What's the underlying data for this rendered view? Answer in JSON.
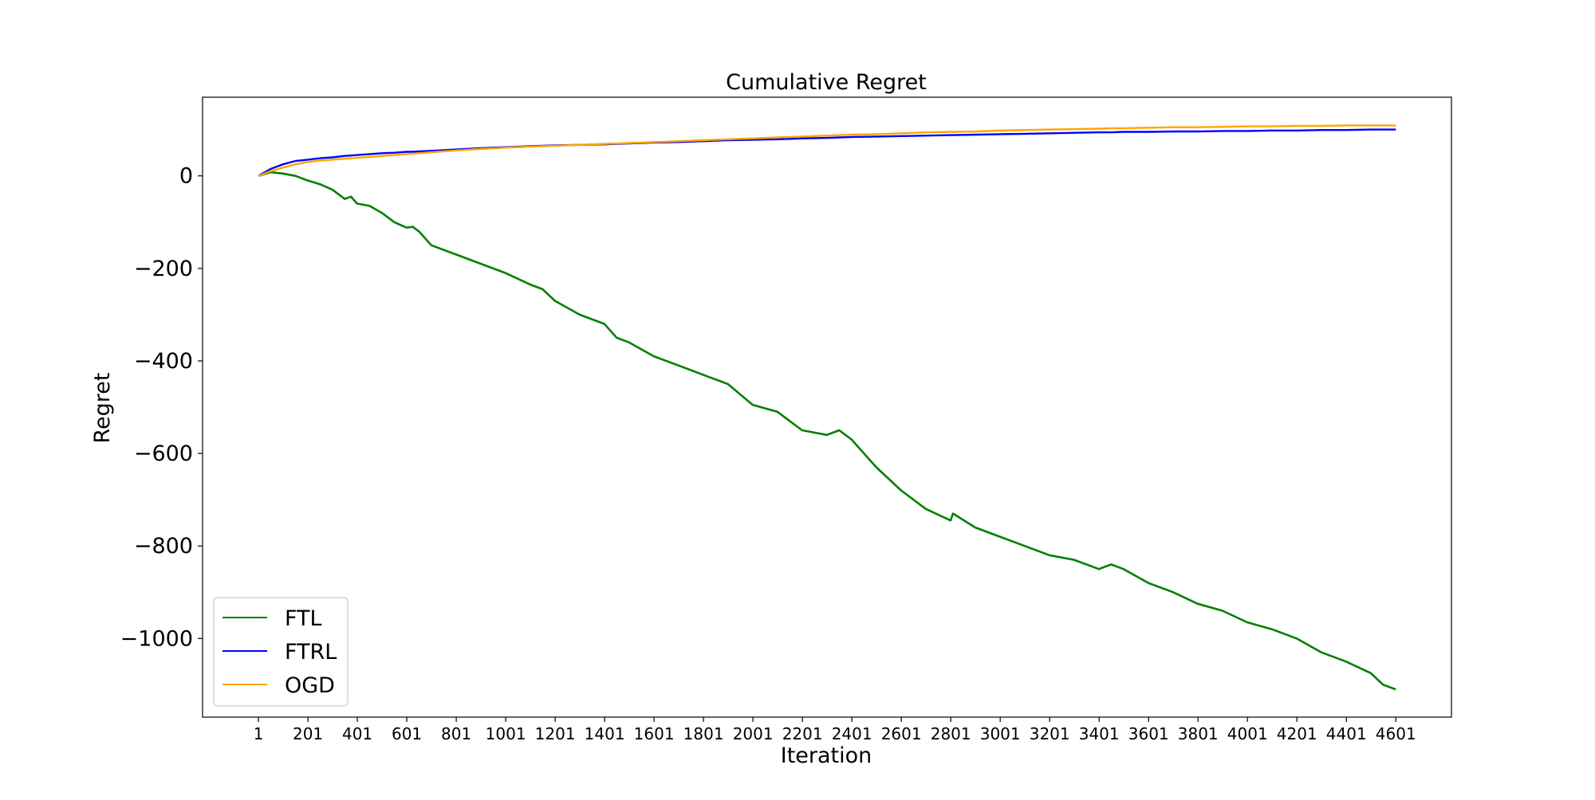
{
  "chart_data": {
    "type": "line",
    "title": "Cumulative Regret",
    "xlabel": "Iteration",
    "ylabel": "Regret",
    "xlim": [
      -225,
      4826
    ],
    "ylim": [
      -1170,
      170
    ],
    "x_ticks": [
      1,
      201,
      401,
      601,
      801,
      1001,
      1201,
      1401,
      1601,
      1801,
      2001,
      2201,
      2401,
      2601,
      2801,
      3001,
      3201,
      3401,
      3601,
      3801,
      4001,
      4201,
      4401,
      4601
    ],
    "y_ticks": [
      0,
      -200,
      -400,
      -600,
      -800,
      -1000
    ],
    "grid": false,
    "legend_position": "lower-left",
    "x": [
      1,
      50,
      100,
      150,
      200,
      250,
      300,
      350,
      375,
      400,
      450,
      500,
      550,
      600,
      625,
      650,
      700,
      800,
      900,
      1000,
      1100,
      1150,
      1200,
      1300,
      1400,
      1450,
      1500,
      1600,
      1700,
      1800,
      1850,
      1900,
      2000,
      2100,
      2150,
      2200,
      2300,
      2350,
      2400,
      2500,
      2600,
      2700,
      2800,
      2810,
      2900,
      3000,
      3100,
      3200,
      3300,
      3400,
      3450,
      3500,
      3600,
      3700,
      3800,
      3900,
      4000,
      4100,
      4200,
      4300,
      4400,
      4500,
      4550,
      4601
    ],
    "series": [
      {
        "name": "FTL",
        "color": "#008000",
        "values": [
          0,
          8,
          5,
          0,
          -10,
          -18,
          -30,
          -50,
          -45,
          -60,
          -65,
          -80,
          -100,
          -112,
          -110,
          -120,
          -150,
          -170,
          -190,
          -210,
          -235,
          -245,
          -270,
          -300,
          -320,
          -350,
          -360,
          -390,
          -410,
          -430,
          -440,
          -450,
          -495,
          -510,
          -530,
          -550,
          -560,
          -550,
          -570,
          -630,
          -680,
          -720,
          -745,
          -730,
          -760,
          -780,
          -800,
          -820,
          -830,
          -850,
          -840,
          -850,
          -880,
          -900,
          -925,
          -940,
          -965,
          -980,
          -1000,
          -1030,
          -1050,
          -1075,
          -1100,
          -1110
        ]
      },
      {
        "name": "FTRL",
        "color": "#0000ff",
        "values": [
          0,
          15,
          25,
          32,
          35,
          38,
          40,
          43,
          44,
          45,
          47,
          49,
          50,
          52,
          52,
          53,
          54,
          57,
          60,
          62,
          64,
          65,
          66,
          67,
          68,
          69,
          70,
          72,
          73,
          75,
          76,
          77,
          78,
          79,
          80,
          81,
          82,
          83,
          84,
          85,
          86,
          87,
          88,
          88,
          89,
          90,
          91,
          92,
          93,
          94,
          94,
          95,
          95,
          96,
          96,
          97,
          97,
          98,
          98,
          99,
          99,
          100,
          100,
          100
        ]
      },
      {
        "name": "OGD",
        "color": "#ffa500",
        "values": [
          0,
          10,
          18,
          25,
          30,
          33,
          35,
          37,
          38,
          39,
          41,
          43,
          45,
          47,
          48,
          49,
          51,
          55,
          58,
          61,
          63,
          64,
          65,
          67,
          69,
          70,
          71,
          73,
          75,
          77,
          78,
          79,
          81,
          83,
          84,
          85,
          87,
          88,
          89,
          90,
          92,
          94,
          95,
          95,
          96,
          98,
          99,
          100,
          101,
          102,
          103,
          103,
          104,
          105,
          105,
          106,
          107,
          107,
          108,
          108,
          109,
          109,
          109,
          109
        ]
      }
    ]
  }
}
